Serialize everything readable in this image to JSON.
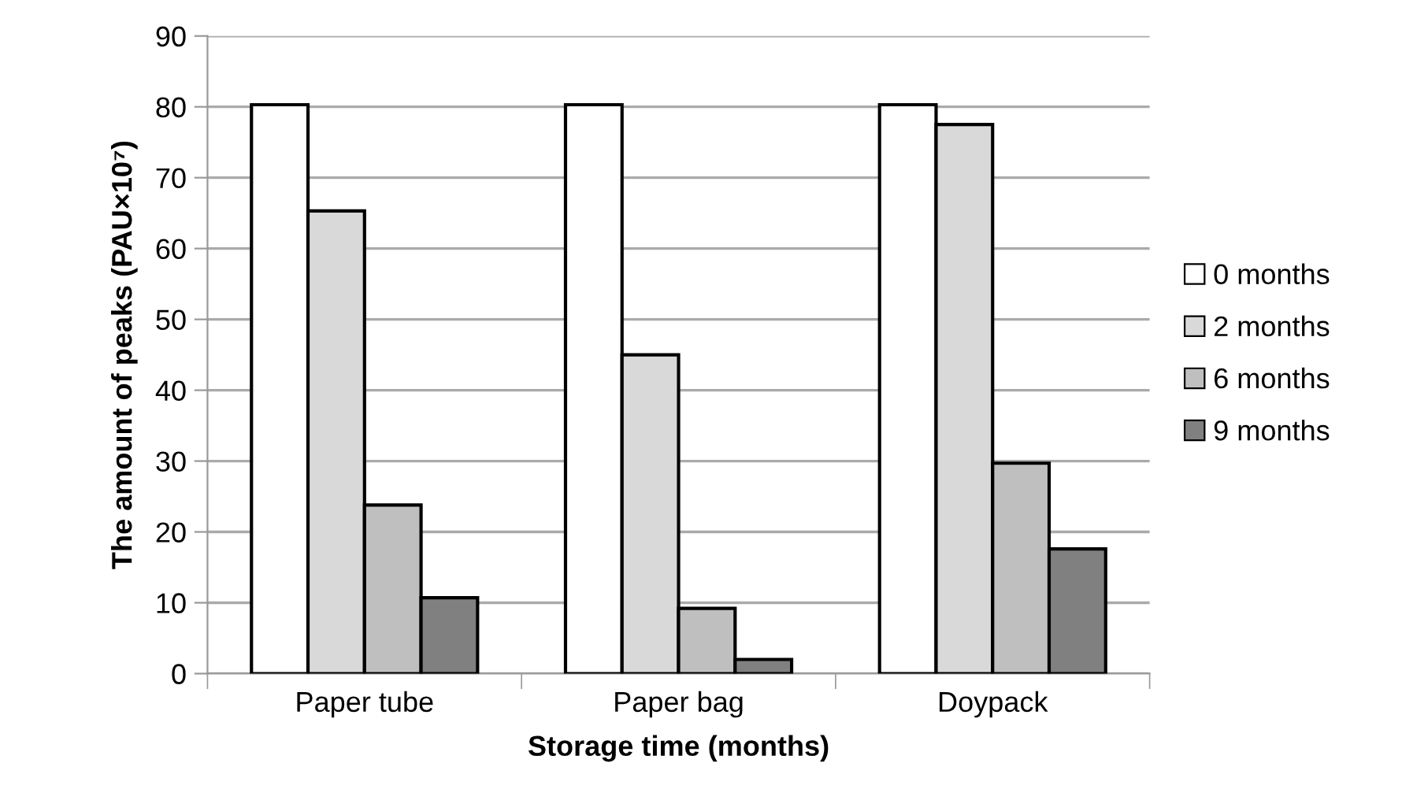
{
  "chart_data": {
    "type": "bar",
    "xlabel": "Storage time (months)",
    "ylabel": "The amount of peaks (PAU×10⁷)",
    "categories": [
      "Paper tube",
      "Paper bag",
      "Doypack"
    ],
    "series": [
      {
        "name": "0 months",
        "color": "#ffffff",
        "values": [
          80.3,
          80.3,
          80.3
        ]
      },
      {
        "name": "2 months",
        "color": "#d9d9d9",
        "values": [
          65.3,
          45.0,
          77.5
        ]
      },
      {
        "name": "6 months",
        "color": "#bfbfbf",
        "values": [
          23.8,
          9.2,
          29.7
        ]
      },
      {
        "name": "9 months",
        "color": "#808080",
        "values": [
          10.7,
          2.0,
          17.6
        ]
      }
    ],
    "ylim": [
      0,
      90
    ],
    "yticks": [
      0,
      10,
      20,
      30,
      40,
      50,
      60,
      70,
      80,
      90
    ],
    "grid": "y",
    "legend": "right"
  }
}
